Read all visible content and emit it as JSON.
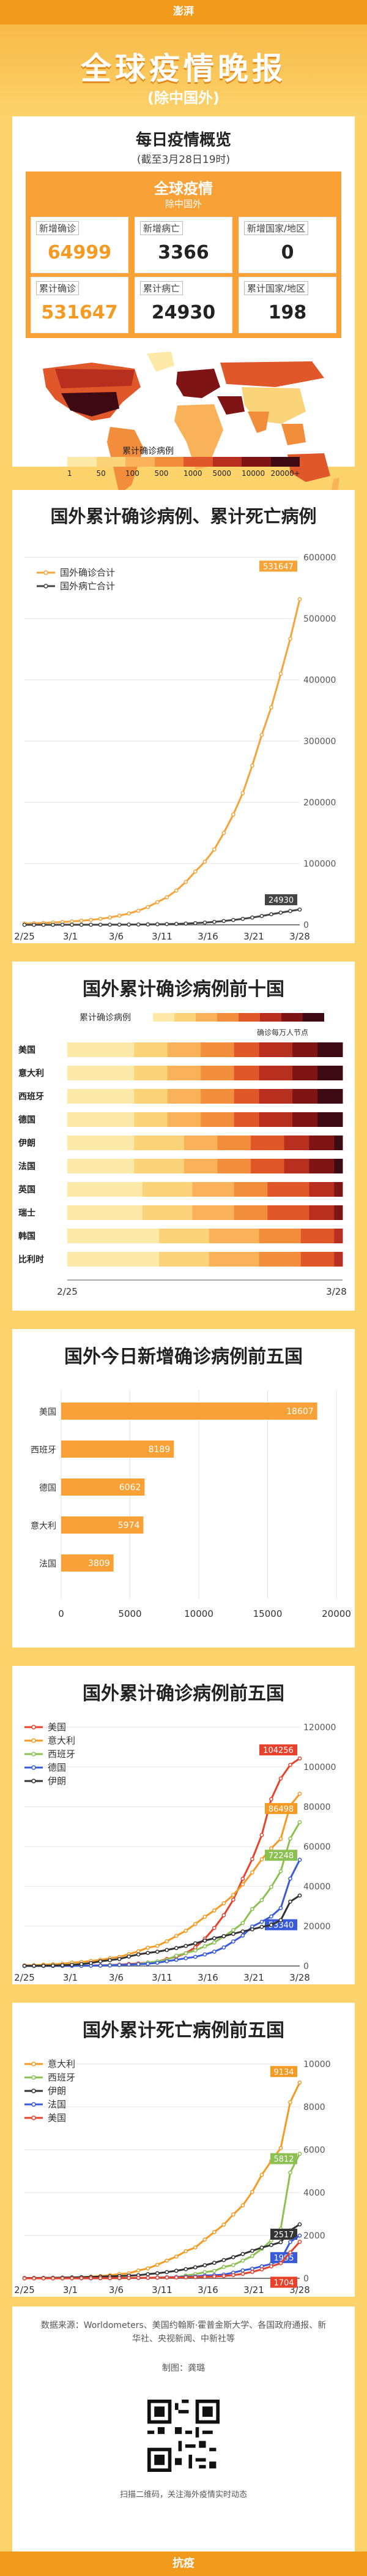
{
  "header": {
    "logo": "澎湃",
    "title": "全球疫情晚报",
    "subtitle": "(除中国外)"
  },
  "overview": {
    "title": "每日疫情概览",
    "subtitle": "(截至3月28日19时)",
    "box_title": "全球疫情",
    "box_subtitle": "除中国外",
    "stats": [
      {
        "label": "新增确诊",
        "value": "64999",
        "color": "#f59a23"
      },
      {
        "label": "新增病亡",
        "value": "3366",
        "color": "#333333"
      },
      {
        "label": "新增国家/地区",
        "value": "0",
        "color": "#333333"
      },
      {
        "label": "累计确诊",
        "value": "531647",
        "color": "#f59a23"
      },
      {
        "label": "累计病亡",
        "value": "24930",
        "color": "#333333"
      },
      {
        "label": "累计国家/地区",
        "value": "198",
        "color": "#333333"
      }
    ],
    "map_legend_title": "累计确诊病例",
    "map_scale": {
      "labels": [
        "1",
        "50",
        "100",
        "500",
        "1000",
        "5000",
        "10000",
        "20000+"
      ],
      "colors": [
        "#fde9a8",
        "#fbd47a",
        "#f9b25a",
        "#f28d3c",
        "#e0572a",
        "#b7301f",
        "#7e1414",
        "#3d0a14"
      ]
    }
  },
  "chart_data": [
    {
      "type": "line",
      "title": "国外累计确诊病例、累计死亡病例",
      "x_ticks": [
        "2/25",
        "3/1",
        "3/6",
        "3/11",
        "3/16",
        "3/21",
        "3/28"
      ],
      "ylim": [
        0,
        600000
      ],
      "y_ticks": [
        "0",
        "100000",
        "200000",
        "300000",
        "400000",
        "500000",
        "600000"
      ],
      "series": [
        {
          "name": "国外确诊合计",
          "color": "#f5a43a",
          "end_label": "531647",
          "values": [
            2000,
            2500,
            3000,
            3700,
            4500,
            5500,
            6700,
            8000,
            9800,
            12000,
            15000,
            18500,
            23000,
            29000,
            37000,
            45000,
            56000,
            70000,
            87000,
            103000,
            123000,
            150000,
            180000,
            215000,
            260000,
            310000,
            355000,
            410000,
            467000,
            531647
          ]
        },
        {
          "name": "国外病亡合计",
          "color": "#444444",
          "end_label": "24930",
          "values": [
            30,
            35,
            45,
            55,
            70,
            90,
            110,
            140,
            180,
            230,
            300,
            380,
            500,
            650,
            850,
            1100,
            1500,
            2000,
            2700,
            3600,
            4800,
            6200,
            7900,
            9700,
            11900,
            14400,
            17200,
            19900,
            22500,
            24930
          ]
        }
      ]
    },
    {
      "type": "heatmap",
      "title": "国外累计确诊病例前十国",
      "legend_title": "累计确诊病例",
      "legend_note": "确诊每万人节点",
      "rows": [
        "美国",
        "意大利",
        "西班牙",
        "德国",
        "伊朗",
        "法国",
        "英国",
        "瑞士",
        "韩国",
        "比利时"
      ],
      "x_ticks": [
        "2/25",
        "3/28"
      ]
    },
    {
      "type": "bar",
      "title": "国外今日新增确诊病例前五国",
      "categories": [
        "美国",
        "西班牙",
        "德国",
        "意大利",
        "法国"
      ],
      "values": [
        18607,
        8189,
        6062,
        5974,
        3809
      ],
      "value_labels": [
        "18607",
        "8189",
        "6062",
        "5974",
        "3809"
      ],
      "xlim": [
        0,
        20000
      ],
      "x_ticks": [
        "0",
        "5000",
        "10000",
        "15000",
        "20000"
      ]
    },
    {
      "type": "line",
      "title": "国外累计确诊病例前五国",
      "x_ticks": [
        "2/25",
        "3/1",
        "3/6",
        "3/11",
        "3/16",
        "3/21",
        "3/28"
      ],
      "ylim": [
        0,
        120000
      ],
      "y_ticks": [
        "0",
        "20000",
        "40000",
        "60000",
        "80000",
        "100000",
        "120000"
      ],
      "series": [
        {
          "name": "美国",
          "color": "#e8412c",
          "end_label": "104256",
          "values": [
            50,
            60,
            70,
            80,
            100,
            120,
            160,
            230,
            330,
            500,
            700,
            1000,
            1300,
            1700,
            2200,
            3500,
            4600,
            6400,
            9400,
            13700,
            19100,
            25500,
            33300,
            43800,
            53700,
            65800,
            83800,
            94200,
            101000,
            104256
          ]
        },
        {
          "name": "意大利",
          "color": "#f59a23",
          "end_label": "86498",
          "values": [
            320,
            400,
            650,
            900,
            1130,
            1700,
            2000,
            2500,
            3100,
            3900,
            4600,
            5900,
            7400,
            9200,
            10100,
            12400,
            15100,
            17700,
            21100,
            24700,
            27900,
            31500,
            35700,
            41000,
            47000,
            53600,
            59100,
            63900,
            80600,
            86498
          ]
        },
        {
          "name": "西班牙",
          "color": "#8cc152",
          "end_label": "72248",
          "values": [
            5,
            10,
            20,
            30,
            45,
            70,
            115,
            150,
            200,
            400,
            500,
            680,
            1000,
            1700,
            2300,
            3100,
            5200,
            6400,
            7800,
            9900,
            11800,
            14800,
            18000,
            21600,
            28600,
            33100,
            39700,
            47600,
            64000,
            72248
          ]
        },
        {
          "name": "德国",
          "color": "#3a5bd9",
          "end_label": "53340",
          "values": [
            16,
            18,
            20,
            30,
            50,
            80,
            130,
            160,
            200,
            260,
            500,
            700,
            900,
            1100,
            1600,
            2400,
            3100,
            3900,
            4600,
            5800,
            7200,
            9300,
            12300,
            15300,
            19800,
            22200,
            24900,
            29100,
            43900,
            53340
          ]
        },
        {
          "name": "伊朗",
          "color": "#333333",
          "end_label": "35408",
          "values": [
            61,
            95,
            139,
            245,
            388,
            593,
            978,
            1501,
            2336,
            2922,
            3513,
            4747,
            5823,
            6566,
            7161,
            8042,
            9000,
            10075,
            11364,
            12729,
            13938,
            14991,
            16169,
            17361,
            18407,
            19644,
            20610,
            23049,
            32332,
            35408
          ]
        }
      ]
    },
    {
      "type": "line",
      "title": "国外累计死亡病例前五国",
      "x_ticks": [
        "2/25",
        "3/1",
        "3/6",
        "3/11",
        "3/16",
        "3/21",
        "3/28"
      ],
      "ylim": [
        0,
        10000
      ],
      "y_ticks": [
        "0",
        "2000",
        "4000",
        "6000",
        "8000",
        "10000"
      ],
      "series": [
        {
          "name": "意大利",
          "color": "#f59a23",
          "end_label": "9134",
          "values": [
            10,
            12,
            17,
            21,
            29,
            34,
            52,
            79,
            107,
            148,
            197,
            233,
            366,
            463,
            631,
            827,
            1016,
            1266,
            1441,
            1809,
            2158,
            2503,
            2978,
            3405,
            4032,
            4825,
            5476,
            6077,
            8215,
            9134
          ]
        },
        {
          "name": "西班牙",
          "color": "#8cc152",
          "end_label": "5812",
          "values": [
            0,
            0,
            0,
            0,
            0,
            0,
            0,
            1,
            2,
            3,
            5,
            10,
            17,
            28,
            35,
            54,
            55,
            133,
            195,
            289,
            342,
            533,
            623,
            830,
            1043,
            1375,
            1772,
            2311,
            4934,
            5812
          ]
        },
        {
          "name": "伊朗",
          "color": "#333333",
          "end_label": "2517",
          "values": [
            15,
            19,
            22,
            26,
            34,
            43,
            54,
            66,
            77,
            92,
            107,
            124,
            145,
            194,
            237,
            291,
            354,
            429,
            514,
            611,
            724,
            853,
            988,
            1135,
            1284,
            1433,
            1556,
            1685,
            2234,
            2517
          ]
        },
        {
          "name": "法国",
          "color": "#3a5bd9",
          "end_label": "1995",
          "values": [
            2,
            2,
            2,
            2,
            2,
            2,
            3,
            4,
            6,
            9,
            11,
            16,
            19,
            25,
            33,
            48,
            61,
            79,
            91,
            127,
            148,
            175,
            264,
            372,
            450,
            562,
            674,
            860,
            1696,
            1995
          ]
        },
        {
          "name": "美国",
          "color": "#e8412c",
          "end_label": "1704",
          "values": [
            0,
            0,
            0,
            0,
            1,
            2,
            6,
            9,
            11,
            12,
            15,
            19,
            22,
            26,
            30,
            38,
            41,
            48,
            57,
            69,
            85,
            108,
            150,
            211,
            300,
            417,
            557,
            706,
            1209,
            1704
          ]
        }
      ]
    }
  ],
  "footer": {
    "source": "数据来源：Worldometers、美国约翰斯·霍普金斯大学、各国政府通报、新华社、央视新闻、中新社等",
    "author": "制图：龚璐",
    "scan": "扫描二维码，关注海外疫情实时动态",
    "bottom": "抗疫"
  }
}
